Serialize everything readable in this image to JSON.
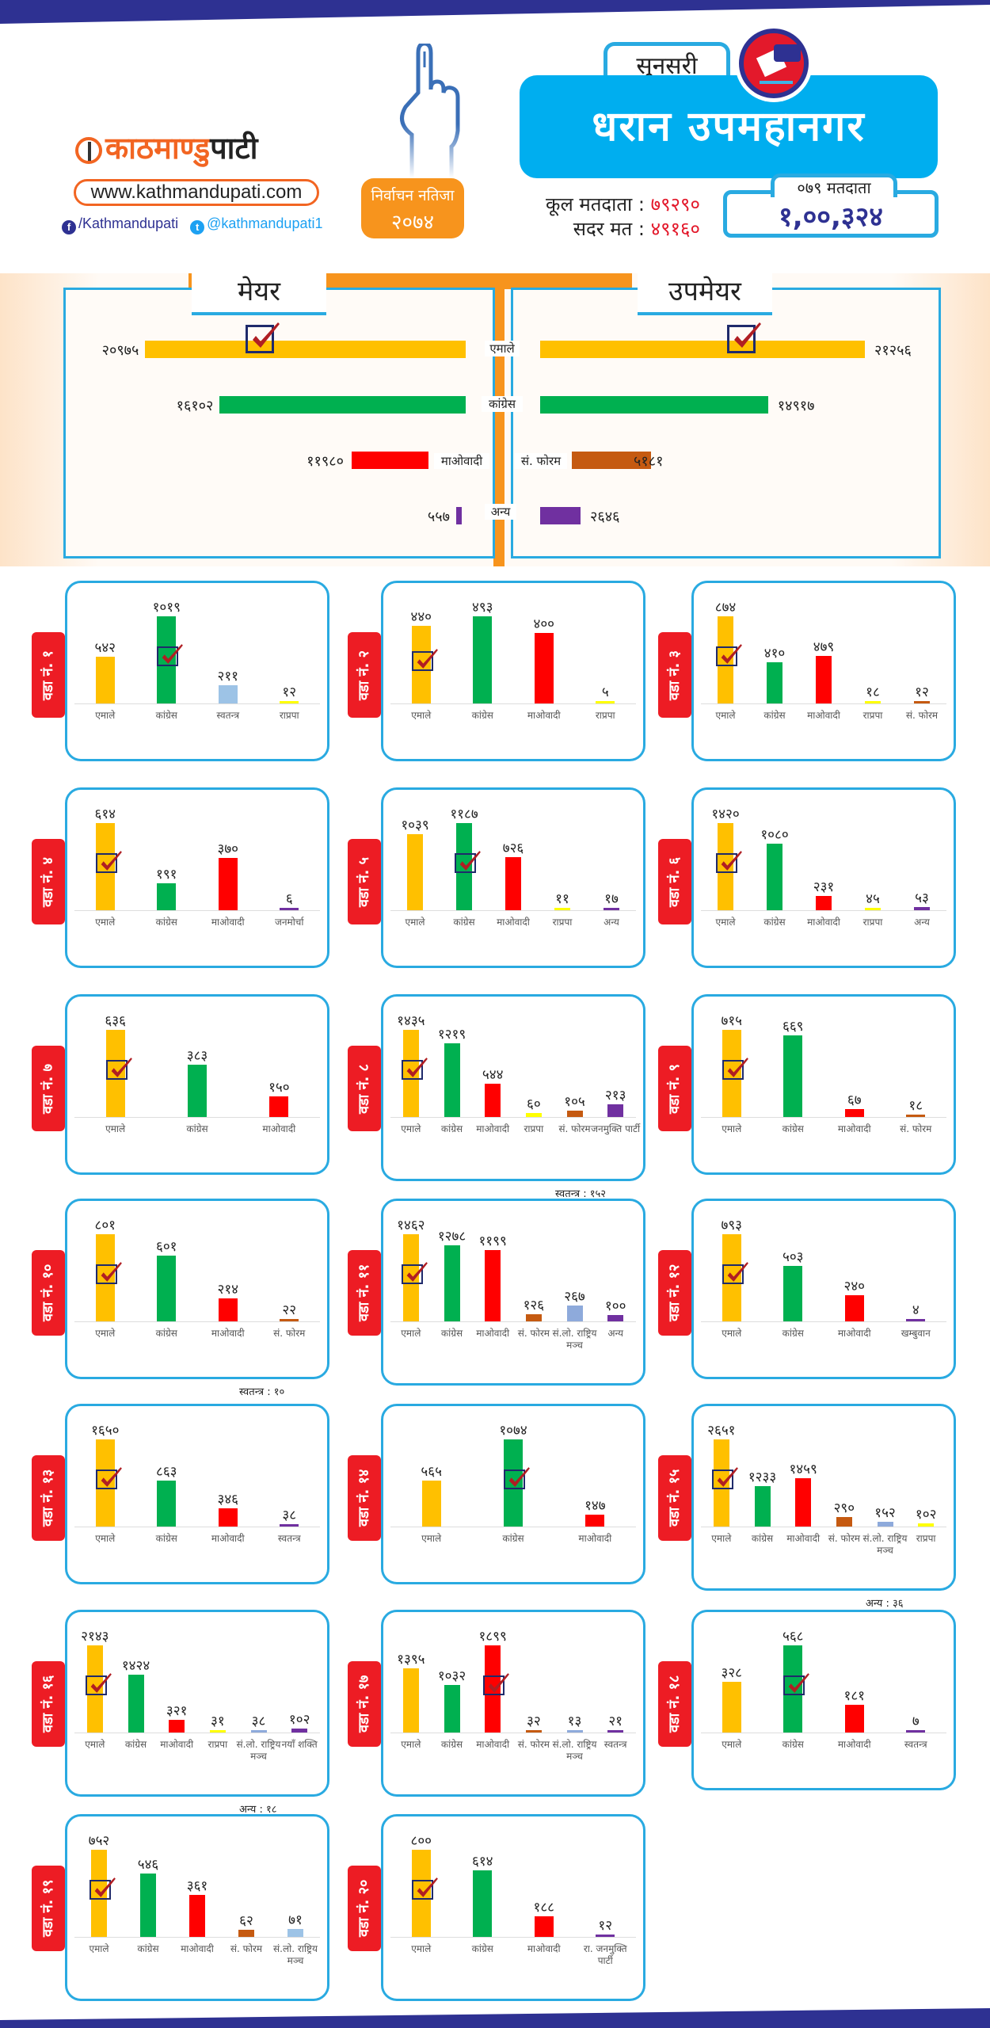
{
  "header": {
    "logo_text_orange": "काठमाण्डु",
    "logo_text_dark": "पाटी",
    "website": "www.kathmandupati.com",
    "facebook": "/Kathmandupati",
    "twitter": "@kathmandupati1",
    "badge_line1": "निर्वाचन नतिजा",
    "badge_line2": "२०७४",
    "district": "सुनसरी",
    "municipality": "धरान उपमहानगर",
    "total_voters_label": "कूल मतदाता :",
    "total_voters_value": "७९२९०",
    "valid_votes_label": "सदर मत :",
    "valid_votes_value": "४९१६०",
    "voters_071_label": "०७९ मतदाता",
    "voters_071_value": "१,००,३२४"
  },
  "colors": {
    "uml": "#ffc000",
    "congress": "#00b050",
    "maoist": "#ff0000",
    "forum": "#c55a11",
    "other": "#7030a0",
    "independent": "#9dc3e6",
    "rpp": "#ffff00",
    "slrm": "#8eaadb",
    "accent_blue": "#29aae1",
    "ward_red": "#ed1c24",
    "orange": "#f7941d"
  },
  "chart_data": [
    {
      "type": "bar",
      "title": "मेयर",
      "orientation": "horizontal",
      "winner": "एमाले",
      "categories": [
        "एमाले",
        "कांग्रेस",
        "माओवादी",
        "अन्य"
      ],
      "value_labels": [
        "२०९७५",
        "१६१०२",
        "११९८०",
        "५५७"
      ],
      "values": [
        20975,
        16102,
        11980,
        557
      ],
      "colors": [
        "#ffc000",
        "#00b050",
        "#ff0000",
        "#7030a0"
      ]
    },
    {
      "type": "bar",
      "title": "उपमेयर",
      "orientation": "horizontal",
      "winner": "एमाले",
      "categories": [
        "एमाले",
        "कांग्रेस",
        "सं. फोरम",
        "अन्य"
      ],
      "value_labels": [
        "२१२५६",
        "१४९१७",
        "५१८१",
        "२६४६"
      ],
      "values": [
        21256,
        14917,
        5181,
        2646
      ],
      "colors": [
        "#ffc000",
        "#00b050",
        "#c55a11",
        "#7030a0"
      ]
    }
  ],
  "wards": [
    {
      "label": "वडा नं. १",
      "winner": 1,
      "categories": [
        "एमाले",
        "कांग्रेस",
        "स्वतन्त्र",
        "राप्रपा"
      ],
      "value_labels": [
        "५४२",
        "१०१९",
        "२११",
        "१२"
      ],
      "values": [
        542,
        1019,
        211,
        12
      ],
      "colors": [
        "#ffc000",
        "#00b050",
        "#9dc3e6",
        "#ffff00"
      ],
      "note": ""
    },
    {
      "label": "वडा नं. २",
      "winner": 0,
      "categories": [
        "एमाले",
        "कांग्रेस",
        "माओवादी",
        "राप्रपा"
      ],
      "value_labels": [
        "४४०",
        "४९३",
        "४००",
        "५"
      ],
      "values": [
        440,
        493,
        400,
        5
      ],
      "colors": [
        "#ffc000",
        "#00b050",
        "#ff0000",
        "#ffff00"
      ],
      "note": ""
    },
    {
      "label": "वडा नं. ३",
      "winner": 0,
      "categories": [
        "एमाले",
        "कांग्रेस",
        "माओवादी",
        "राप्रपा",
        "सं. फोरम"
      ],
      "value_labels": [
        "८७४",
        "४१०",
        "४७९",
        "१८",
        "१२"
      ],
      "values": [
        874,
        410,
        479,
        18,
        12
      ],
      "colors": [
        "#ffc000",
        "#00b050",
        "#ff0000",
        "#ffff00",
        "#c55a11"
      ],
      "note": ""
    },
    {
      "label": "वडा नं. ४",
      "winner": 0,
      "categories": [
        "एमाले",
        "कांग्रेस",
        "माओवादी",
        "जनमोर्चा"
      ],
      "value_labels": [
        "६१४",
        "१९१",
        "३७०",
        "६"
      ],
      "values": [
        614,
        191,
        370,
        6
      ],
      "colors": [
        "#ffc000",
        "#00b050",
        "#ff0000",
        "#7030a0"
      ],
      "note": ""
    },
    {
      "label": "वडा नं. ५",
      "winner": 1,
      "categories": [
        "एमाले",
        "कांग्रेस",
        "माओवादी",
        "राप्रपा",
        "अन्य"
      ],
      "value_labels": [
        "१०३९",
        "११८७",
        "७२६",
        "११",
        "१७"
      ],
      "values": [
        1039,
        1187,
        726,
        11,
        17
      ],
      "colors": [
        "#ffc000",
        "#00b050",
        "#ff0000",
        "#ffff00",
        "#7030a0"
      ],
      "note": ""
    },
    {
      "label": "वडा नं. ६",
      "winner": 0,
      "categories": [
        "एमाले",
        "कांग्रेस",
        "माओवादी",
        "राप्रपा",
        "अन्य"
      ],
      "value_labels": [
        "१४२०",
        "१०८०",
        "२३१",
        "४५",
        "५३"
      ],
      "values": [
        1420,
        1080,
        231,
        45,
        53
      ],
      "colors": [
        "#ffc000",
        "#00b050",
        "#ff0000",
        "#ffff00",
        "#7030a0"
      ],
      "note": ""
    },
    {
      "label": "वडा नं. ७",
      "winner": 0,
      "categories": [
        "एमाले",
        "कांग्रेस",
        "माओवादी"
      ],
      "value_labels": [
        "६३६",
        "३८३",
        "१५०"
      ],
      "values": [
        636,
        383,
        150
      ],
      "colors": [
        "#ffc000",
        "#00b050",
        "#ff0000"
      ],
      "note": ""
    },
    {
      "label": "वडा नं. ८",
      "winner": 0,
      "categories": [
        "एमाले",
        "कांग्रेस",
        "माओवादी",
        "राप्रपा",
        "सं. फोरम",
        "जनमुक्ति पार्टी"
      ],
      "value_labels": [
        "१४३५",
        "१२१९",
        "५४४",
        "६०",
        "१०५",
        "२१३"
      ],
      "values": [
        1435,
        1219,
        544,
        60,
        105,
        213
      ],
      "colors": [
        "#ffc000",
        "#00b050",
        "#ff0000",
        "#ffff00",
        "#c55a11",
        "#7030a0"
      ],
      "note": "स्वतन्त्र : १५२"
    },
    {
      "label": "वडा नं. ९",
      "winner": 0,
      "categories": [
        "एमाले",
        "कांग्रेस",
        "माओवादी",
        "सं. फोरम"
      ],
      "value_labels": [
        "७१५",
        "६६९",
        "६७",
        "१८"
      ],
      "values": [
        715,
        669,
        67,
        18
      ],
      "colors": [
        "#ffc000",
        "#00b050",
        "#ff0000",
        "#c55a11"
      ],
      "note": ""
    },
    {
      "label": "वडा नं. १०",
      "winner": 0,
      "categories": [
        "एमाले",
        "कांग्रेस",
        "माओवादी",
        "सं. फोरम"
      ],
      "value_labels": [
        "८०१",
        "६०१",
        "२१४",
        "२२"
      ],
      "values": [
        801,
        601,
        214,
        22
      ],
      "colors": [
        "#ffc000",
        "#00b050",
        "#ff0000",
        "#c55a11"
      ],
      "note": "स्वतन्त्र : १०"
    },
    {
      "label": "वडा नं. ११",
      "winner": 0,
      "categories": [
        "एमाले",
        "कांग्रेस",
        "माओवादी",
        "सं. फोरम",
        "सं.लो. राष्ट्रिय मञ्च",
        "अन्य"
      ],
      "value_labels": [
        "१४६२",
        "१२७८",
        "११९९",
        "१२६",
        "२६७",
        "१००"
      ],
      "values": [
        1462,
        1278,
        1199,
        126,
        267,
        100
      ],
      "colors": [
        "#ffc000",
        "#00b050",
        "#ff0000",
        "#c55a11",
        "#8eaadb",
        "#7030a0"
      ],
      "note": ""
    },
    {
      "label": "वडा नं. १२",
      "winner": 0,
      "categories": [
        "एमाले",
        "कांग्रेस",
        "माओवादी",
        "खम्बुवान"
      ],
      "value_labels": [
        "७९३",
        "५०३",
        "२४०",
        "४"
      ],
      "values": [
        793,
        503,
        240,
        4
      ],
      "colors": [
        "#ffc000",
        "#00b050",
        "#ff0000",
        "#7030a0"
      ],
      "note": ""
    },
    {
      "label": "वडा नं. १३",
      "winner": 0,
      "categories": [
        "एमाले",
        "कांग्रेस",
        "माओवादी",
        "स्वतन्त्र"
      ],
      "value_labels": [
        "१६५०",
        "८६३",
        "३४६",
        "३८"
      ],
      "values": [
        1650,
        863,
        346,
        38
      ],
      "colors": [
        "#ffc000",
        "#00b050",
        "#ff0000",
        "#7030a0"
      ],
      "note": ""
    },
    {
      "label": "वडा नं. १४",
      "winner": 1,
      "categories": [
        "एमाले",
        "कांग्रेस",
        "माओवादी"
      ],
      "value_labels": [
        "५६५",
        "१०७४",
        "१४७"
      ],
      "values": [
        565,
        1074,
        147
      ],
      "colors": [
        "#ffc000",
        "#00b050",
        "#ff0000"
      ],
      "note": ""
    },
    {
      "label": "वडा नं. १५",
      "winner": 0,
      "categories": [
        "एमाले",
        "कांग्रेस",
        "माओवादी",
        "सं. फोरम",
        "सं.लो. राष्ट्रिय मञ्च",
        "राप्रपा"
      ],
      "value_labels": [
        "२६५१",
        "१२३३",
        "१४५९",
        "२९०",
        "१५२",
        "१०२"
      ],
      "values": [
        2651,
        1233,
        1459,
        290,
        152,
        102
      ],
      "colors": [
        "#ffc000",
        "#00b050",
        "#ff0000",
        "#c55a11",
        "#8eaadb",
        "#ffff00"
      ],
      "note": "अन्य : ३६"
    },
    {
      "label": "वडा नं. १६",
      "winner": 0,
      "categories": [
        "एमाले",
        "कांग्रेस",
        "माओवादी",
        "राप्रपा",
        "सं.लो. राष्ट्रिय मञ्च",
        "नयाँ शक्ति"
      ],
      "value_labels": [
        "२१४३",
        "१४२४",
        "३२१",
        "३१",
        "३८",
        "१०२"
      ],
      "values": [
        2143,
        1424,
        321,
        31,
        38,
        102
      ],
      "colors": [
        "#ffc000",
        "#00b050",
        "#ff0000",
        "#ffff00",
        "#8eaadb",
        "#7030a0"
      ],
      "note": "अन्य : १८"
    },
    {
      "label": "वडा नं. १७",
      "winner": 2,
      "categories": [
        "एमाले",
        "कांग्रेस",
        "माओवादी",
        "सं. फोरम",
        "सं.लो. राष्ट्रिय मञ्च",
        "स्वतन्त्र"
      ],
      "value_labels": [
        "१३९५",
        "१०३२",
        "१८९९",
        "३२",
        "१३",
        "२१"
      ],
      "values": [
        1395,
        1032,
        1899,
        32,
        13,
        21
      ],
      "colors": [
        "#ffc000",
        "#00b050",
        "#ff0000",
        "#c55a11",
        "#8eaadb",
        "#7030a0"
      ],
      "note": ""
    },
    {
      "label": "वडा नं. १८",
      "winner": 1,
      "categories": [
        "एमाले",
        "कांग्रेस",
        "माओवादी",
        "स्वतन्त्र"
      ],
      "value_labels": [
        "३२८",
        "५६८",
        "१८१",
        "७"
      ],
      "values": [
        328,
        568,
        181,
        7
      ],
      "colors": [
        "#ffc000",
        "#00b050",
        "#ff0000",
        "#7030a0"
      ],
      "note": ""
    },
    {
      "label": "वडा नं. १९",
      "winner": 0,
      "categories": [
        "एमाले",
        "कांग्रेस",
        "माओवादी",
        "सं. फोरम",
        "सं.लो. राष्ट्रिय मञ्च"
      ],
      "value_labels": [
        "७५२",
        "५४६",
        "३६१",
        "६२",
        "७१"
      ],
      "values": [
        752,
        546,
        361,
        62,
        71
      ],
      "colors": [
        "#ffc000",
        "#00b050",
        "#ff0000",
        "#c55a11",
        "#9dc3e6"
      ],
      "note": ""
    },
    {
      "label": "वडा नं. २०",
      "winner": 0,
      "categories": [
        "एमाले",
        "कांग्रेस",
        "माओवादी",
        "रा. जनमुक्ति पार्टी"
      ],
      "value_labels": [
        "८००",
        "६१४",
        "१८८",
        "१२"
      ],
      "values": [
        800,
        614,
        188,
        12
      ],
      "colors": [
        "#ffc000",
        "#00b050",
        "#ff0000",
        "#7030a0"
      ],
      "note": ""
    }
  ]
}
